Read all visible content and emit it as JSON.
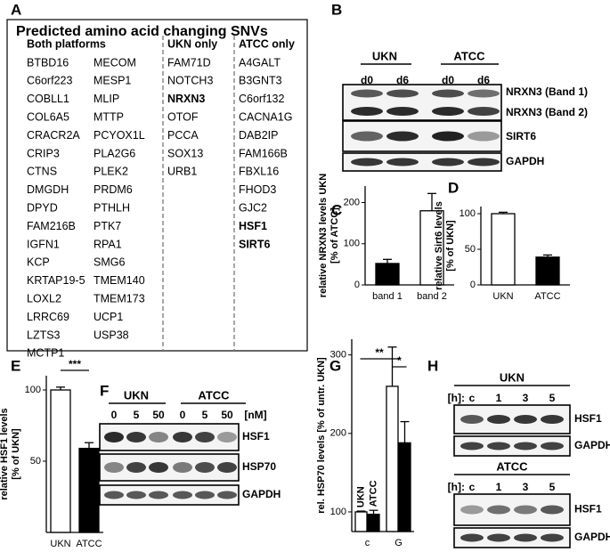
{
  "panel_letters": [
    "A",
    "B",
    "C",
    "D",
    "E",
    "F",
    "G",
    "H"
  ],
  "table": {
    "title": "Predicted amino acid changing SNVs",
    "headers": [
      "Both platforms",
      "UKN only",
      "ATCC only"
    ],
    "columns": [
      [
        "BTBD16",
        "C6orf223",
        "COBLL1",
        "COL6A5",
        "CRACR2A",
        "CRIP3",
        "CTNS",
        "DMGDH",
        "DPYD",
        "FAM216B",
        "IGFN1",
        "KCP",
        "KRTAP19-5",
        "LOXL2",
        "LRRC69",
        "LZTS3",
        "MCTP1"
      ],
      [
        "MECOM",
        "MESP1",
        "MLIP",
        "MTTP",
        "PCYOX1L",
        "PLA2G6",
        "PLEK2",
        "PRDM6",
        "PTHLH",
        "PTK7",
        "RPA1",
        "SMG6",
        "TMEM140",
        "TMEM173",
        "UCP1",
        "USP38"
      ],
      [
        "FAM71D",
        "NOTCH3",
        {
          "text": "NRXN3",
          "color": "#d9302a"
        },
        "OTOF",
        "PCCA",
        "SOX13",
        "URB1"
      ],
      [
        "A4GALT",
        "B3GNT3",
        "C6orf132",
        "CACNA1G",
        "DAB2IP",
        "FAM166B",
        "FBXL16",
        "FHOD3",
        "GJC2",
        {
          "text": "HSF1",
          "color": "#d9302a"
        },
        {
          "text": "SIRT6",
          "color": "#d9302a"
        }
      ]
    ]
  },
  "blot_b": {
    "groups": [
      "UKN",
      "ATCC"
    ],
    "lanes": [
      "d0",
      "d6",
      "d0",
      "d6"
    ],
    "bands": [
      "NRXN3 (Band 1)",
      "NRXN3 (Band 2)",
      "SIRT6",
      "GAPDH"
    ]
  },
  "blot_f": {
    "groups": [
      "UKN",
      "ATCC"
    ],
    "lanes": [
      "0",
      "5",
      "50",
      "0",
      "5",
      "50"
    ],
    "unit": "[nM]",
    "bands": [
      "HSF1",
      "HSP70",
      "GAPDH"
    ]
  },
  "blot_h": {
    "panels": [
      {
        "group": "UKN",
        "time_label": "[h]:",
        "lanes": [
          "c",
          "1",
          "3",
          "5"
        ],
        "bands": [
          "HSF1",
          "GAPDH"
        ]
      },
      {
        "group": "ATCC",
        "time_label": "[h]:",
        "lanes": [
          "c",
          "1",
          "3",
          "5"
        ],
        "bands": [
          "HSF1",
          "GAPDH"
        ]
      }
    ]
  },
  "chart_data": [
    {
      "type": "bar",
      "ylabel": [
        "relative NRXN3 levels UKN",
        "[% of ATCC]"
      ],
      "categories": [
        "band 1",
        "band 2"
      ],
      "values": [
        52,
        180
      ],
      "errors": [
        10,
        42
      ],
      "colors": [
        "#000000",
        "#ffffff"
      ],
      "ylim": [
        0,
        240
      ],
      "yticks": [
        0,
        100,
        200
      ]
    },
    {
      "type": "bar",
      "ylabel": [
        "relative Sirt6 levels",
        "[% of UKN]"
      ],
      "categories": [
        "UKN",
        "ATCC"
      ],
      "values": [
        100,
        39
      ],
      "errors": [
        2,
        3
      ],
      "colors": [
        "#ffffff",
        "#000000"
      ],
      "ylim": [
        0,
        110
      ],
      "yticks": [
        0,
        50,
        100
      ]
    },
    {
      "type": "bar",
      "ylabel": [
        "relative HSF1 levels",
        "[% of UKN]"
      ],
      "categories": [
        "UKN",
        "ATCC"
      ],
      "values": [
        100,
        59
      ],
      "errors": [
        2,
        4
      ],
      "colors": [
        "#ffffff",
        "#000000"
      ],
      "ylim": [
        0,
        110
      ],
      "yticks": [
        50,
        100
      ],
      "annotations": [
        "***"
      ]
    },
    {
      "type": "grouped_bar",
      "ylabel": [
        "rel. HSP70 levels [% of untr. UKN]"
      ],
      "categories": [
        "c",
        "G"
      ],
      "series": [
        {
          "name": "UKN",
          "color": "#ffffff",
          "values": [
            100,
            260
          ],
          "errors": [
            1,
            50
          ]
        },
        {
          "name": "ATCC",
          "color": "#000000",
          "values": [
            97,
            188
          ],
          "errors": [
            5,
            27
          ]
        }
      ],
      "ylim": [
        75,
        320
      ],
      "yticks": [
        100,
        200,
        300
      ],
      "annotations": [
        "**",
        "*"
      ]
    }
  ]
}
